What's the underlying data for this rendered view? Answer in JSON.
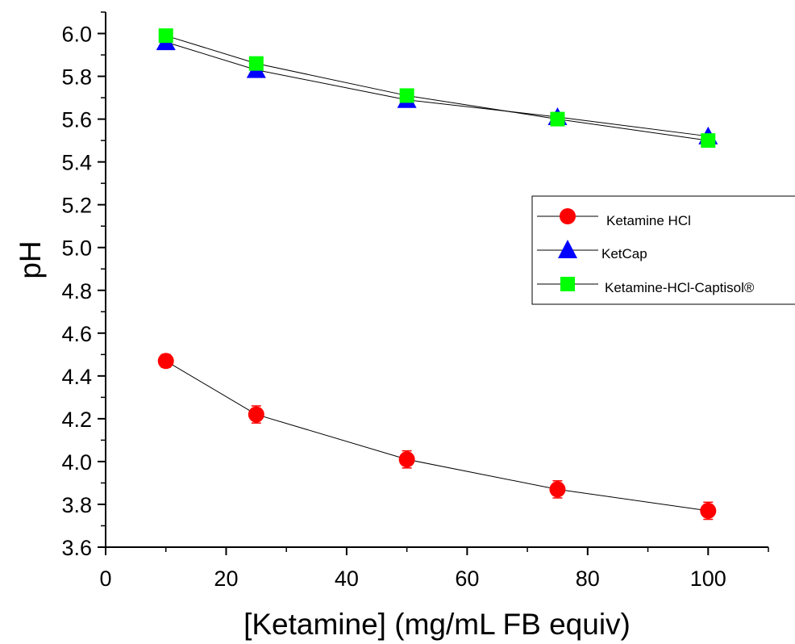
{
  "chart_data": {
    "type": "scatter",
    "xlabel": "[Ketamine] (mg/mL FB equiv)",
    "ylabel": "pH",
    "xlim": [
      0,
      110
    ],
    "ylim": [
      3.6,
      6.1
    ],
    "x_ticks": [
      "0",
      "20",
      "40",
      "60",
      "80",
      "100"
    ],
    "y_ticks": [
      "3.6",
      "3.8",
      "4.0",
      "4.2",
      "4.4",
      "4.6",
      "4.8",
      "5.0",
      "5.2",
      "5.4",
      "5.6",
      "5.8",
      "6.0"
    ],
    "grid": false,
    "legend_position": "right",
    "series": [
      {
        "name": "Ketamine HCl",
        "marker": "circle",
        "color": "#ff0000",
        "x": [
          10,
          25,
          50,
          75,
          100
        ],
        "y": [
          4.47,
          4.22,
          4.01,
          3.87,
          3.77
        ],
        "error": [
          0.03,
          0.04,
          0.04,
          0.04,
          0.04
        ]
      },
      {
        "name": "KetCap",
        "marker": "triangle",
        "color": "#0000ff",
        "x": [
          10,
          25,
          50,
          75,
          100
        ],
        "y": [
          5.96,
          5.83,
          5.69,
          5.61,
          5.52
        ]
      },
      {
        "name": "Ketamine-HCl-Captisol®",
        "marker": "square",
        "color": "#00ff00",
        "x": [
          10,
          25,
          50,
          75,
          100
        ],
        "y": [
          5.99,
          5.86,
          5.71,
          5.6,
          5.5
        ]
      }
    ]
  }
}
